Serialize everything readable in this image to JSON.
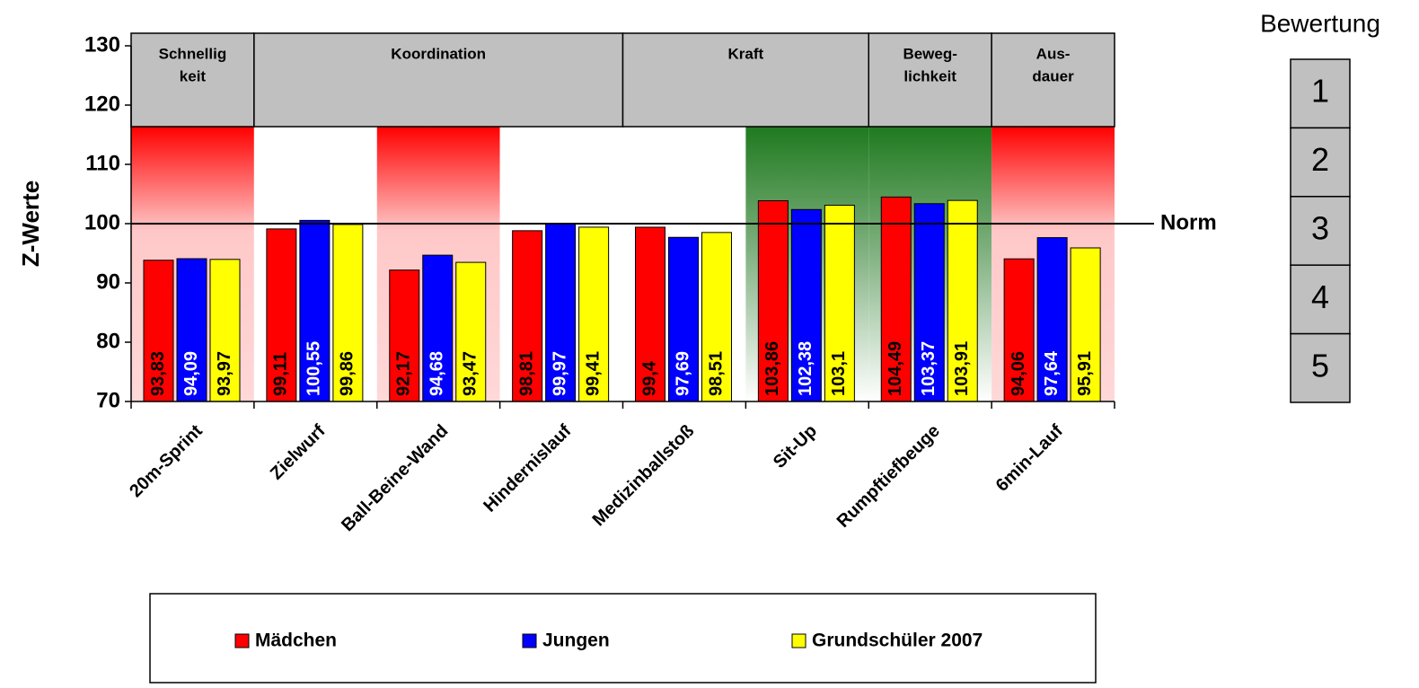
{
  "chart_data": {
    "type": "bar",
    "y_label": "Z-Werte",
    "categories": [
      "20m-Sprint",
      "Zielwurf",
      "Ball-Beine-Wand",
      "Hindernislauf",
      "Medizinballstoß",
      "Sit-Up",
      "Rumpftiefbeuge",
      "6min-Lauf"
    ],
    "groups": [
      {
        "lines": [
          "Schnellig",
          "keit"
        ],
        "span": [
          0,
          1
        ]
      },
      {
        "lines": [
          "Koordination"
        ],
        "span": [
          1,
          4
        ]
      },
      {
        "lines": [
          "Kraft"
        ],
        "span": [
          4,
          6
        ]
      },
      {
        "lines": [
          "Beweg-",
          "lichkeit"
        ],
        "span": [
          6,
          7
        ]
      },
      {
        "lines": [
          "Aus-",
          "dauer"
        ],
        "span": [
          7,
          8
        ]
      }
    ],
    "band_colors": [
      "red",
      "white",
      "red",
      "white",
      "white",
      "green",
      "green",
      "red"
    ],
    "series": [
      {
        "name": "Mädchen",
        "color": "#ff0000",
        "label_color": "#000000",
        "values": [
          93.83,
          99.11,
          92.17,
          98.81,
          99.4,
          103.86,
          104.49,
          94.06
        ],
        "value_labels": [
          "93,83",
          "99,11",
          "92,17",
          "98,81",
          "99,4",
          "103,86",
          "104,49",
          "94,06"
        ]
      },
      {
        "name": "Jungen",
        "color": "#0000ff",
        "label_color": "#ffffff",
        "values": [
          94.09,
          100.55,
          94.68,
          99.97,
          97.69,
          102.38,
          103.37,
          97.64
        ],
        "value_labels": [
          "94,09",
          "100,55",
          "94,68",
          "99,97",
          "97,69",
          "102,38",
          "103,37",
          "97,64"
        ]
      },
      {
        "name": "Grundschüler 2007",
        "color": "#ffff00",
        "label_color": "#000000",
        "values": [
          93.97,
          99.86,
          93.47,
          99.41,
          98.51,
          103.1,
          103.91,
          95.91
        ],
        "value_labels": [
          "93,97",
          "99,86",
          "93,47",
          "99,41",
          "98,51",
          "103,1",
          "103,91",
          "95,91"
        ]
      }
    ],
    "ylim": [
      70,
      130
    ],
    "yticks": [
      70,
      80,
      90,
      100,
      110,
      120,
      130
    ],
    "norm": {
      "value": 100,
      "label": "Norm"
    },
    "rating": {
      "title": "Bewertung",
      "levels": [
        1,
        2,
        3,
        4,
        5
      ]
    },
    "legend": "bottom"
  }
}
